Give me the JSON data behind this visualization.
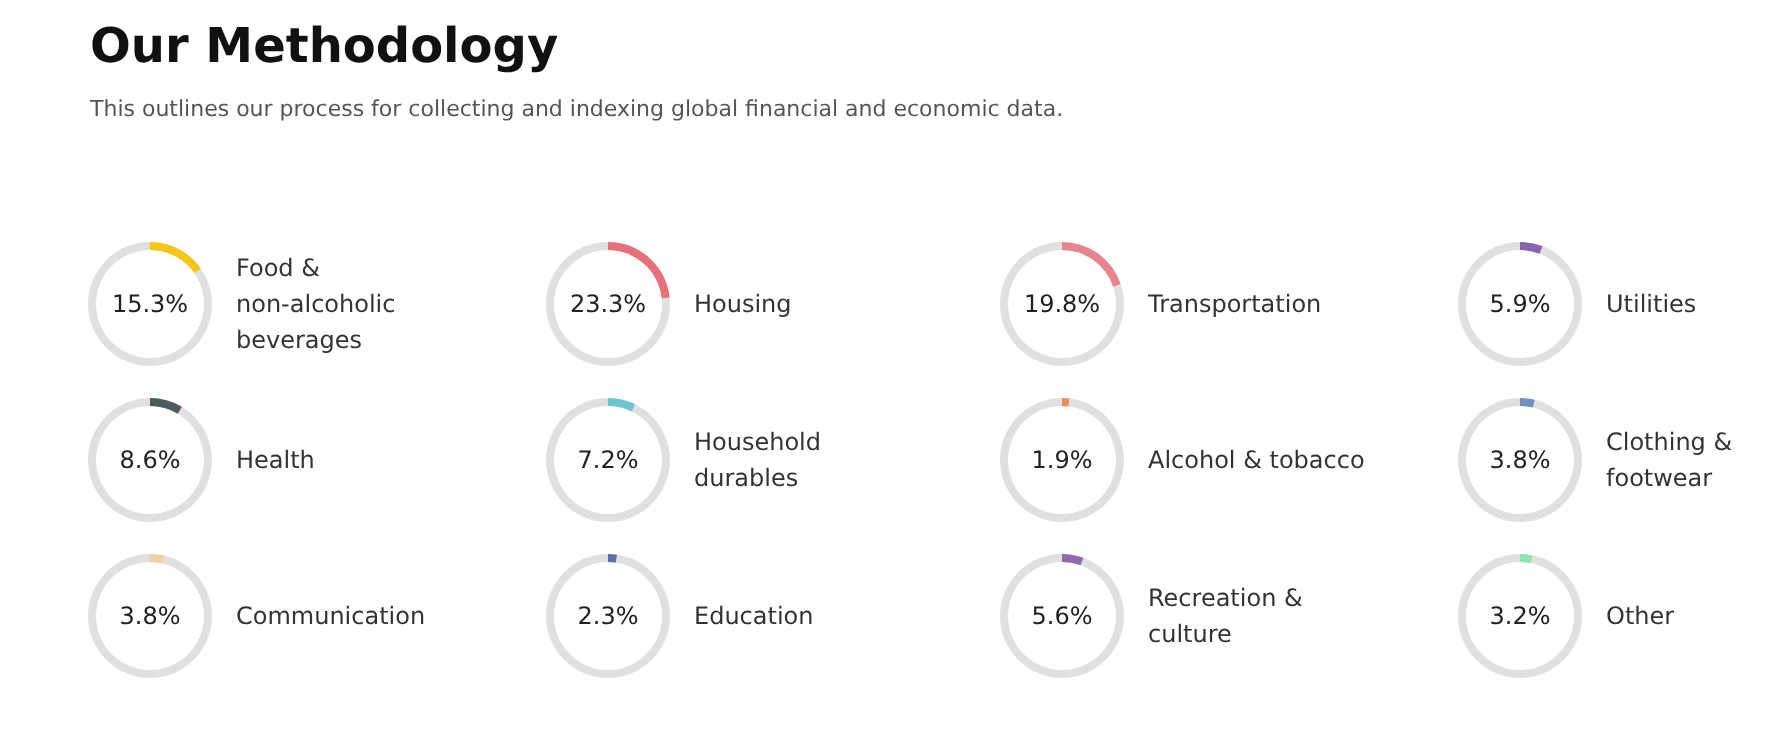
{
  "chart_data": {
    "type": "other",
    "title": "Our Methodology",
    "subtitle": "This outlines our process for collecting and indexing global financial and economic data.",
    "categories": [
      "Food & non-alcoholic beverages",
      "Housing",
      "Transportation",
      "Utilities",
      "Health",
      "Household durables",
      "Alcohol & tobacco",
      "Clothing & footwear",
      "Communication",
      "Education",
      "Recreation & culture",
      "Other"
    ],
    "values": [
      15.3,
      23.3,
      19.8,
      5.9,
      8.6,
      7.2,
      1.9,
      3.8,
      3.8,
      2.3,
      5.6,
      3.2
    ],
    "value_labels": [
      "15.3%",
      "23.3%",
      "19.8%",
      "5.9%",
      "8.6%",
      "7.2%",
      "1.9%",
      "3.8%",
      "3.8%",
      "2.3%",
      "5.6%",
      "3.2%"
    ],
    "colors": [
      "#f5c518",
      "#e8707a",
      "#e8848e",
      "#8a63b0",
      "#4d5a5e",
      "#6cc5d0",
      "#f08a5d",
      "#6f8fbf",
      "#f3cfa8",
      "#5b6fa6",
      "#8c6bb1",
      "#8fe3b0"
    ]
  }
}
